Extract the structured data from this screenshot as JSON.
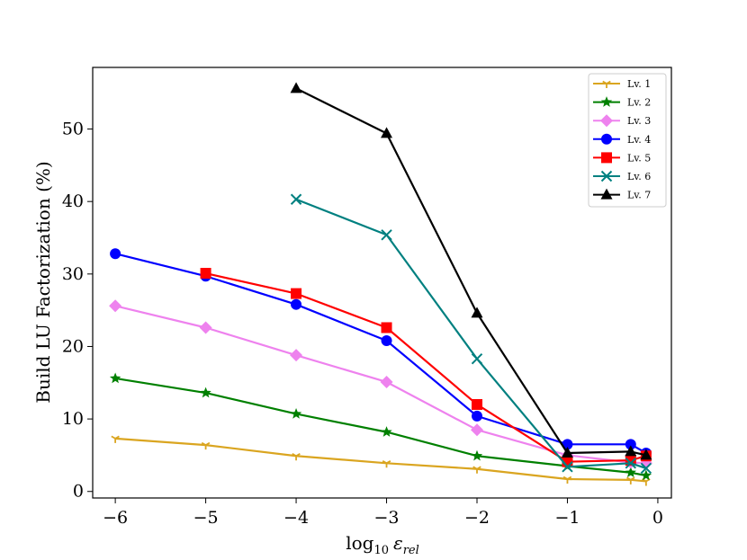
{
  "chart_data": {
    "type": "line",
    "title": "",
    "xlabel": "log10 ε_rel",
    "xlabel_parts": {
      "base": "log",
      "base_sub": "10",
      "symbol": "ε",
      "symbol_sub": "rel"
    },
    "ylabel": "Build LU Factorization (%)",
    "xlim": [
      -6.25,
      0.15
    ],
    "ylim": [
      -0.9,
      58.5
    ],
    "xticks": [
      -6,
      -5,
      -4,
      -3,
      -2,
      -1,
      0
    ],
    "xtick_labels": [
      "−6",
      "−5",
      "−4",
      "−3",
      "−2",
      "−1",
      "0"
    ],
    "yticks": [
      0,
      10,
      20,
      30,
      40,
      50
    ],
    "ytick_labels": [
      "0",
      "10",
      "20",
      "30",
      "40",
      "50"
    ],
    "grid": false,
    "legend_position": "top-right",
    "series": [
      {
        "name": "Lv. 1",
        "color": "#DAA520",
        "marker": "tri_down",
        "x": [
          -6,
          -5,
          -4,
          -3,
          -2,
          -1,
          -0.3,
          -0.13
        ],
        "y": [
          7.3,
          6.4,
          4.9,
          3.9,
          3.1,
          1.7,
          1.6,
          1.4
        ]
      },
      {
        "name": "Lv. 2",
        "color": "#008000",
        "marker": "star",
        "x": [
          -6,
          -5,
          -4,
          -3,
          -2,
          -1,
          -0.3,
          -0.13
        ],
        "y": [
          15.6,
          13.6,
          10.7,
          8.2,
          4.9,
          3.5,
          2.6,
          2.2
        ]
      },
      {
        "name": "Lv. 3",
        "color": "#EE82EE",
        "marker": "diamond",
        "x": [
          -6,
          -5,
          -4,
          -3,
          -2,
          -1,
          -0.3,
          -0.13
        ],
        "y": [
          25.6,
          22.6,
          18.8,
          15.1,
          8.5,
          5.0,
          4.0,
          3.9
        ]
      },
      {
        "name": "Lv. 4",
        "color": "#0000FF",
        "marker": "circle",
        "x": [
          -6,
          -5,
          -4,
          -3,
          -2,
          -1,
          -0.3,
          -0.13
        ],
        "y": [
          32.8,
          29.7,
          25.8,
          20.8,
          10.4,
          6.5,
          6.5,
          5.3
        ]
      },
      {
        "name": "Lv. 5",
        "color": "#FF0000",
        "marker": "square",
        "x": [
          -5,
          -4,
          -3,
          -2,
          -1,
          -0.3,
          -0.13
        ],
        "y": [
          30.1,
          27.3,
          22.6,
          12.0,
          4.1,
          4.3,
          4.9
        ]
      },
      {
        "name": "Lv. 6",
        "color": "#008080",
        "marker": "x",
        "x": [
          -4,
          -3,
          -2,
          -1,
          -0.3,
          -0.13
        ],
        "y": [
          40.3,
          35.4,
          18.3,
          3.4,
          3.9,
          3.2
        ]
      },
      {
        "name": "Lv. 7",
        "color": "#000000",
        "marker": "triangle_up",
        "x": [
          -4,
          -3,
          -2,
          -1,
          -0.3,
          -0.13
        ],
        "y": [
          55.6,
          49.4,
          24.6,
          5.3,
          5.5,
          5.0
        ]
      }
    ]
  }
}
